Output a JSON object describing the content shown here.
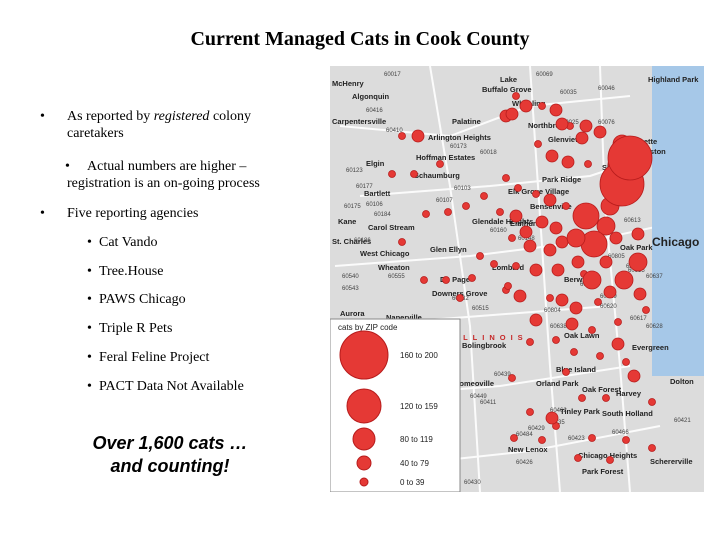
{
  "title": "Current Managed Cats in Cook County",
  "bullets": [
    {
      "level": 1,
      "text_before": "As reported by ",
      "emphasis": "registered",
      "text_after": " colony caretakers"
    },
    {
      "level": 2,
      "text": "Actual numbers are higher – registration is an on-going process"
    },
    {
      "level": 1,
      "text": "Five reporting agencies"
    },
    {
      "level": 2,
      "text": "Cat Vando"
    },
    {
      "level": 2,
      "text": "Tree.House"
    },
    {
      "level": 2,
      "text": "PAWS Chicago"
    },
    {
      "level": 2,
      "text": "Triple R Pets"
    },
    {
      "level": 2,
      "text": "Feral Feline Project"
    },
    {
      "level": 2,
      "text": "PACT Data Not Available"
    }
  ],
  "bullet_glyph": "•",
  "tagline_line1": "Over 1,600 cats …",
  "tagline_line2": "and counting!",
  "map": {
    "legend_title": "cats by ZIP code",
    "legend_ranges": [
      "160 to 200",
      "120 to 159",
      "80 to 119",
      "40 to 79",
      "0 to 39"
    ],
    "city_labels": [
      "Highland Park",
      "McHenry",
      "Algonquin",
      "Buffalo Grove",
      "Wheeling",
      "Carpentersville",
      "Palatine",
      "Northbrook",
      "Arlington Heights",
      "Glenview",
      "Wilmette",
      "Evanston",
      "Skokie",
      "Elgin",
      "Hoffman Estates",
      "Schaumburg",
      "Park Ridge",
      "Niles",
      "Bartlett",
      "Elk Grove Village",
      "Bensenville",
      "Elmhurst",
      "Oak Park",
      "Chicago",
      "Carol Stream",
      "Glendale Heights",
      "St. Charles",
      "West Chicago",
      "Glen Ellyn",
      "Wheaton",
      "Lombard",
      "Berwyn",
      "Du Page",
      "Downers Grove",
      "Aurora",
      "Naperville",
      "Oak Lawn",
      "Evergreen",
      "Bolingbrook",
      "Blue Island",
      "Dolton",
      "Romeoville",
      "Orland Park",
      "Oak Forest",
      "Harvey",
      "Tinley Park",
      "South Holland",
      "New Lenox",
      "Chicago Heights",
      "Park Forest",
      "Schererville",
      "Lake",
      "ILLINOIS",
      "Kane"
    ],
    "zip_labels": [
      "60017",
      "60069",
      "60035",
      "60046",
      "60416",
      "60410",
      "60173",
      "60018",
      "60025",
      "60076",
      "60123",
      "60177",
      "60103",
      "60107",
      "60106",
      "60160",
      "60613",
      "60175",
      "60184",
      "60186",
      "60148",
      "60805",
      "60615",
      "60637",
      "60540",
      "60543",
      "60555",
      "60532",
      "60515",
      "60804",
      "60638",
      "60629",
      "60620",
      "60619",
      "60617",
      "60608",
      "60628",
      "60439",
      "60449",
      "60411",
      "60462",
      "60429",
      "60466",
      "60484",
      "60421",
      "60435",
      "60423",
      "60426",
      "60430"
    ]
  },
  "colors": {
    "dot": "#e53935",
    "dot_stroke": "#b71c1c",
    "map_bg": "#dcdcdc",
    "lake": "#a6c8e8",
    "road": "#ffffff"
  },
  "markers": [
    {
      "zip": "60617",
      "size": 4
    },
    {
      "zip": "60613",
      "size": 4
    },
    {
      "zip": "60637",
      "size": 3
    },
    {
      "zip": "60615",
      "size": 3
    },
    {
      "zip": "60608",
      "size": 2
    },
    {
      "zip": "60620",
      "size": 2
    },
    {
      "zip": "60619",
      "size": 2
    },
    {
      "zip": "60629",
      "size": 1
    },
    {
      "zip": "60638",
      "size": 1
    },
    {
      "zip": "60804",
      "size": 1
    },
    {
      "zip": "60805",
      "size": 1
    },
    {
      "zip": "60628",
      "size": 1
    },
    {
      "zip": "60025",
      "size": 1
    },
    {
      "zip": "60076",
      "size": 1
    },
    {
      "zip": "60069",
      "size": 1
    },
    {
      "zip": "60484",
      "size": 1
    }
  ]
}
